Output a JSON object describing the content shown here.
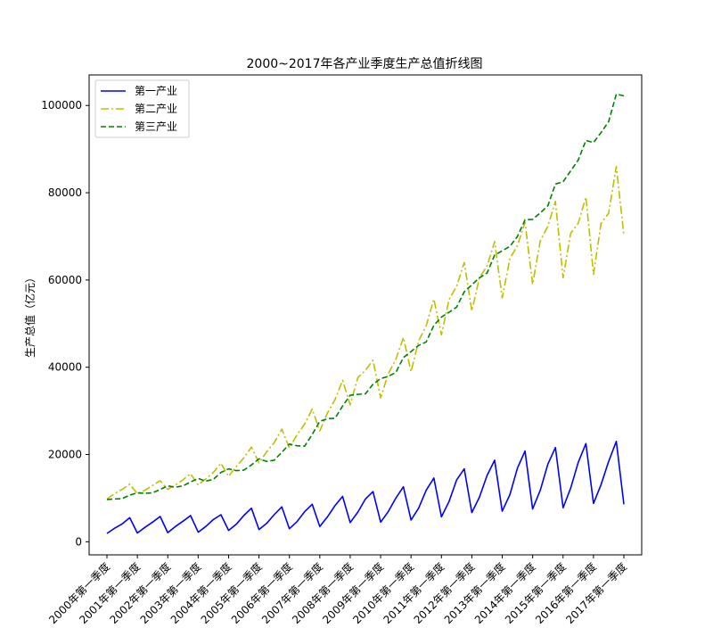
{
  "chart_data": {
    "type": "line",
    "title": "2000~2017年各产业季度生产总值折线图",
    "xlabel": "",
    "ylabel": "生产总值（亿元）",
    "ylim": [
      -3000,
      107000
    ],
    "y_ticks": [
      0,
      20000,
      40000,
      60000,
      80000,
      100000
    ],
    "y_tick_labels": [
      "0",
      "20000",
      "40000",
      "60000",
      "80000",
      "100000"
    ],
    "x_tick_labels": [
      "2000年第一季度",
      "2001年第一季度",
      "2002年第一季度",
      "2003年第一季度",
      "2004年第一季度",
      "2005年第一季度",
      "2006年第一季度",
      "2007年第一季度",
      "2008年第一季度",
      "2009年第一季度",
      "2010年第一季度",
      "2011年第一季度",
      "2012年第一季度",
      "2013年第一季度",
      "2014年第一季度",
      "2015年第一季度",
      "2016年第一季度",
      "2017年第一季度"
    ],
    "grid": false,
    "legend_position": "upper-left",
    "series": [
      {
        "name": "第一产业",
        "color": "#0000ff",
        "style": "solid",
        "values": [
          1900,
          3100,
          4100,
          5500,
          2000,
          3300,
          4500,
          5800,
          2100,
          3500,
          4700,
          6000,
          2200,
          3500,
          5100,
          6200,
          2600,
          4000,
          6000,
          7700,
          2800,
          4200,
          6200,
          8000,
          3000,
          4600,
          6900,
          8600,
          3500,
          5700,
          8300,
          10400,
          4400,
          6800,
          9800,
          11500,
          4500,
          6900,
          10000,
          12600,
          5000,
          7700,
          11800,
          14600,
          5700,
          9200,
          14200,
          16700,
          6700,
          10200,
          15200,
          18700,
          7000,
          10800,
          16900,
          20800,
          7500,
          11800,
          17800,
          21600,
          7800,
          12300,
          18200,
          22500,
          8800,
          13100,
          18400,
          23000,
          8600
        ]
      },
      {
        "name": "第二产业",
        "color": "#bfbf00",
        "style": "dashdot",
        "values": [
          9800,
          11000,
          12000,
          13200,
          11000,
          11800,
          12900,
          14000,
          12000,
          13000,
          14200,
          15600,
          13000,
          14400,
          15900,
          18000,
          15000,
          17200,
          19200,
          21700,
          18100,
          20600,
          22700,
          25800,
          21500,
          24500,
          27000,
          30400,
          25400,
          29500,
          32600,
          37000,
          31400,
          37600,
          39300,
          41600,
          33000,
          38500,
          41800,
          46800,
          39000,
          46000,
          49500,
          55600,
          47400,
          55500,
          58600,
          64000,
          52900,
          60500,
          63200,
          68800,
          55900,
          64900,
          67900,
          73200,
          59000,
          69000,
          72300,
          78000,
          60500,
          70700,
          73000,
          79000,
          61300,
          73000,
          75300,
          86000,
          70300
        ]
      },
      {
        "name": "第三产业",
        "color": "#008000",
        "style": "dashed",
        "values": [
          9700,
          9800,
          9900,
          10700,
          11200,
          11100,
          11200,
          12000,
          12800,
          12500,
          12800,
          13700,
          14500,
          13900,
          14300,
          15900,
          16700,
          16300,
          16400,
          17600,
          19000,
          18400,
          18700,
          20500,
          22400,
          22000,
          21900,
          24600,
          27600,
          28200,
          28300,
          31100,
          33600,
          33800,
          33900,
          36100,
          37400,
          37900,
          38800,
          42200,
          43600,
          45000,
          45800,
          49600,
          51500,
          52600,
          53800,
          57300,
          58900,
          60500,
          61600,
          65700,
          66700,
          67700,
          70000,
          73800,
          73900,
          75400,
          77000,
          82000,
          82500,
          85000,
          87500,
          92000,
          91500,
          93800,
          96300,
          102600,
          102200
        ]
      }
    ]
  }
}
